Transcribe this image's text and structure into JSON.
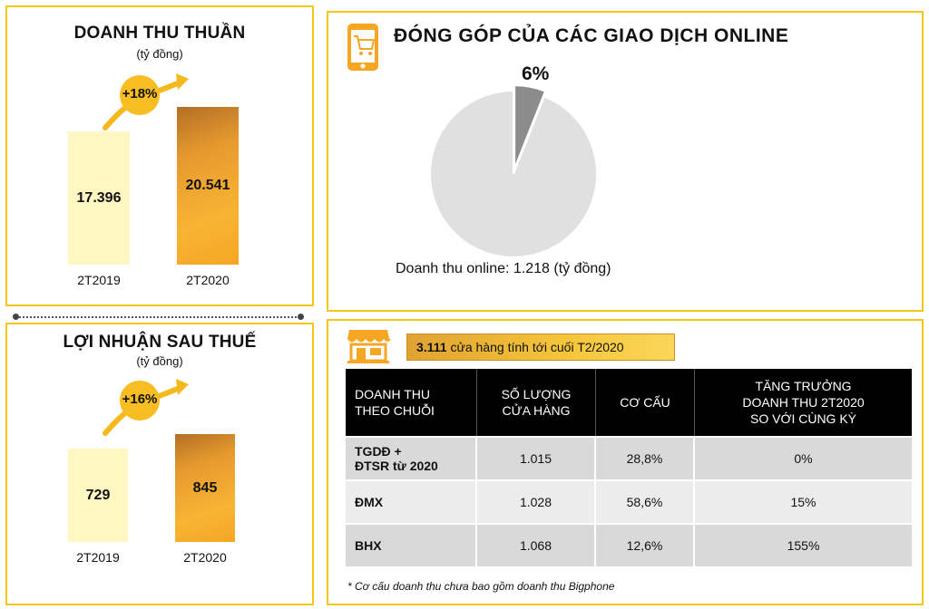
{
  "revenue_panel": {
    "title": "DOANH THU THUẦN",
    "unit": "(tỷ đồng)",
    "growth": "+18%"
  },
  "profit_panel": {
    "title": "LỢI NHUẬN SAU THUẾ",
    "unit": "(tỷ đồng)",
    "growth": "+16%"
  },
  "online_panel": {
    "title": "ĐÓNG GÓP CỦA CÁC GIAO DỊCH ONLINE",
    "caption": "Doanh thu online: 1.218 (tỷ đồng)",
    "icon": "mobile-shopping-cart-icon"
  },
  "stores": {
    "count": "3.111",
    "text": "cửa hàng tính tới cuối T2/2020",
    "icon": "storefront-icon"
  },
  "table": {
    "headers": [
      "DOANH THU\nTHEO CHUỖI",
      "SỐ LƯỢNG\nCỬA HÀNG",
      "CƠ CẤU",
      "TĂNG TRƯỞNG\nDOANH THU 2T2020\nSO VỚI CÙNG KỲ"
    ],
    "rows": [
      [
        "TGDĐ +\nĐTSR từ 2020",
        "1.015",
        "28,8%",
        "0%"
      ],
      [
        "ĐMX",
        "1.028",
        "58,6%",
        "15%"
      ],
      [
        "BHX",
        "1.068",
        "12,6%",
        "155%"
      ]
    ],
    "footnote": "* Cơ cấu doanh thu chưa bao gồm doanh thu Bigphone"
  },
  "colors": {
    "accent": "#f5c518",
    "bar_prev": "#fff7c2",
    "bar_curr": "#f5a623",
    "pie_main": "#e0e0e0",
    "pie_slice": "#8c8c8c"
  },
  "chart_data": [
    {
      "type": "bar",
      "title": "DOANH THU THUẦN",
      "categories": [
        "2T2019",
        "2T2020"
      ],
      "values": [
        17396,
        20541
      ],
      "value_labels": [
        "17.396",
        "20.541"
      ],
      "ylim": [
        0,
        22000
      ]
    },
    {
      "type": "bar",
      "title": "LỢI NHUẬN SAU THUẾ",
      "categories": [
        "2T2019",
        "2T2020"
      ],
      "values": [
        729,
        845
      ],
      "value_labels": [
        "729",
        "845"
      ],
      "ylim": [
        0,
        1000
      ]
    },
    {
      "type": "pie",
      "title": "ĐÓNG GÓP CỦA CÁC GIAO DỊCH ONLINE",
      "values": [
        6,
        94
      ],
      "labels": [
        "6%",
        ""
      ]
    }
  ]
}
